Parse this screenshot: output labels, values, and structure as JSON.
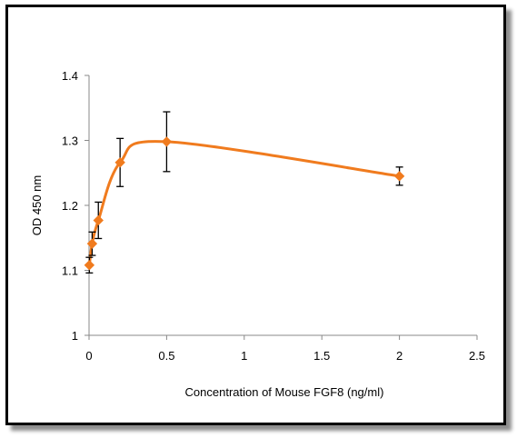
{
  "chart_data": {
    "type": "line",
    "xlabel": "Concentration of  Mouse FGF8 (ng/ml)",
    "ylabel": "OD 450 nm",
    "xlim": [
      0,
      2.5
    ],
    "ylim": [
      1,
      1.4
    ],
    "x_ticks": [
      "0",
      "0.5",
      "1",
      "1.5",
      "2",
      "2.5"
    ],
    "y_ticks": [
      "1",
      "1.1",
      "1.2",
      "1.3",
      "1.4"
    ],
    "grid": false,
    "smooth": true,
    "series": [
      {
        "color": "#F07B1E",
        "marker": "diamond",
        "x": [
          0.002,
          0.02,
          0.06,
          0.2,
          0.5,
          2.0
        ],
        "y": [
          1.108,
          1.141,
          1.177,
          1.266,
          1.298,
          1.245
        ],
        "error": [
          0.012,
          0.018,
          0.028,
          0.037,
          0.046,
          0.014
        ]
      }
    ]
  }
}
